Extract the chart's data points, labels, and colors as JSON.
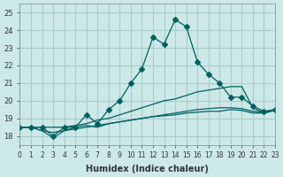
{
  "xlabel": "Humidex (Indice chaleur)",
  "ylabel": "",
  "xlim": [
    0,
    23
  ],
  "ylim": [
    17.5,
    25.5
  ],
  "yticks": [
    18,
    19,
    20,
    21,
    22,
    23,
    24,
    25
  ],
  "xticks": [
    0,
    1,
    2,
    3,
    4,
    5,
    6,
    7,
    8,
    9,
    10,
    11,
    12,
    13,
    14,
    15,
    16,
    17,
    18,
    19,
    20,
    21,
    22,
    23
  ],
  "bg_color": "#cce8e8",
  "grid_color": "#aacccc",
  "line_color": "#006060",
  "lines": [
    {
      "x": [
        0,
        1,
        2,
        3,
        4,
        5,
        6,
        7,
        8,
        9,
        10,
        11,
        12,
        13,
        14,
        15,
        16,
        17,
        18,
        19,
        20,
        21,
        22,
        23
      ],
      "y": [
        18.5,
        18.5,
        18.5,
        18.0,
        18.5,
        18.5,
        19.2,
        18.7,
        19.5,
        20.0,
        21.0,
        21.8,
        23.6,
        23.2,
        24.6,
        24.2,
        22.2,
        21.5,
        21.0,
        20.2,
        20.2,
        19.7,
        19.4,
        19.5
      ],
      "marker": "D",
      "markersize": 3
    },
    {
      "x": [
        0,
        1,
        2,
        3,
        4,
        5,
        6,
        7,
        8,
        9,
        10,
        11,
        12,
        13,
        14,
        15,
        16,
        17,
        18,
        19,
        20,
        21,
        22,
        23
      ],
      "y": [
        18.5,
        18.5,
        18.5,
        18.5,
        18.5,
        18.6,
        18.7,
        18.9,
        19.0,
        19.2,
        19.4,
        19.6,
        19.8,
        20.0,
        20.1,
        20.3,
        20.5,
        20.6,
        20.7,
        20.8,
        20.8,
        19.6,
        19.3,
        19.5
      ],
      "marker": null,
      "markersize": 0
    },
    {
      "x": [
        0,
        1,
        2,
        3,
        4,
        5,
        6,
        7,
        8,
        9,
        10,
        11,
        12,
        13,
        14,
        15,
        16,
        17,
        18,
        19,
        20,
        21,
        22,
        23
      ],
      "y": [
        18.5,
        18.5,
        18.3,
        18.2,
        18.3,
        18.4,
        18.5,
        18.6,
        18.7,
        18.8,
        18.9,
        19.0,
        19.1,
        19.2,
        19.3,
        19.4,
        19.5,
        19.55,
        19.6,
        19.6,
        19.55,
        19.4,
        19.35,
        19.5
      ],
      "marker": null,
      "markersize": 0
    },
    {
      "x": [
        0,
        1,
        2,
        3,
        4,
        5,
        6,
        7,
        8,
        9,
        10,
        11,
        12,
        13,
        14,
        15,
        16,
        17,
        18,
        19,
        20,
        21,
        22,
        23
      ],
      "y": [
        18.5,
        18.5,
        18.3,
        17.9,
        18.3,
        18.5,
        18.6,
        18.5,
        18.7,
        18.8,
        18.9,
        19.0,
        19.1,
        19.15,
        19.2,
        19.3,
        19.35,
        19.4,
        19.4,
        19.5,
        19.45,
        19.3,
        19.3,
        19.45
      ],
      "marker": null,
      "markersize": 0
    }
  ]
}
